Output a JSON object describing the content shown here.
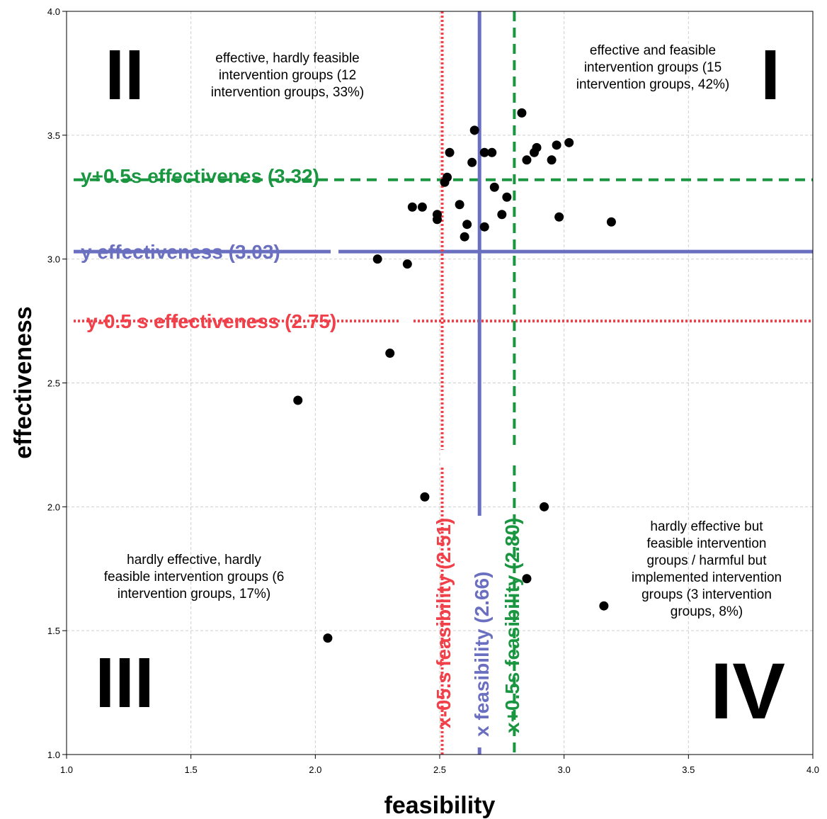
{
  "chart_data": {
    "type": "scatter",
    "xlabel": "feasibility",
    "ylabel": "effectiveness",
    "xlim": [
      1.0,
      4.0
    ],
    "ylim": [
      1.0,
      4.0
    ],
    "xticks": [
      "1.0",
      "1.5",
      "2.0",
      "2.5",
      "3.0",
      "3.5",
      "4.0"
    ],
    "yticks": [
      "1.0",
      "1.5",
      "2.0",
      "2.5",
      "3.0",
      "3.5",
      "4.0"
    ],
    "grid": true,
    "points": [
      {
        "x": 2.83,
        "y": 3.59
      },
      {
        "x": 2.64,
        "y": 3.52
      },
      {
        "x": 3.02,
        "y": 3.47
      },
      {
        "x": 2.89,
        "y": 3.45
      },
      {
        "x": 2.97,
        "y": 3.46
      },
      {
        "x": 2.88,
        "y": 3.43
      },
      {
        "x": 2.54,
        "y": 3.43
      },
      {
        "x": 2.68,
        "y": 3.43
      },
      {
        "x": 2.71,
        "y": 3.43
      },
      {
        "x": 2.85,
        "y": 3.4
      },
      {
        "x": 2.95,
        "y": 3.4
      },
      {
        "x": 2.63,
        "y": 3.39
      },
      {
        "x": 2.53,
        "y": 3.33
      },
      {
        "x": 2.52,
        "y": 3.31
      },
      {
        "x": 2.72,
        "y": 3.29
      },
      {
        "x": 2.77,
        "y": 3.25
      },
      {
        "x": 2.58,
        "y": 3.22
      },
      {
        "x": 2.39,
        "y": 3.21
      },
      {
        "x": 2.43,
        "y": 3.21
      },
      {
        "x": 2.49,
        "y": 3.18
      },
      {
        "x": 2.49,
        "y": 3.16
      },
      {
        "x": 2.75,
        "y": 3.18
      },
      {
        "x": 2.98,
        "y": 3.17
      },
      {
        "x": 3.19,
        "y": 3.15
      },
      {
        "x": 2.61,
        "y": 3.14
      },
      {
        "x": 2.68,
        "y": 3.13
      },
      {
        "x": 2.6,
        "y": 3.09
      },
      {
        "x": 2.25,
        "y": 3.0
      },
      {
        "x": 2.37,
        "y": 2.98
      },
      {
        "x": 2.3,
        "y": 2.62
      },
      {
        "x": 1.93,
        "y": 2.43
      },
      {
        "x": 2.44,
        "y": 2.04
      },
      {
        "x": 2.92,
        "y": 2.0
      },
      {
        "x": 2.85,
        "y": 1.71
      },
      {
        "x": 3.16,
        "y": 1.6
      },
      {
        "x": 2.05,
        "y": 1.47
      }
    ],
    "reference_lines": [
      {
        "axis": "y",
        "value": 3.32,
        "label": "y+0.5s effectivenes (3.32)",
        "color": "#1a9641",
        "style": "dashed"
      },
      {
        "axis": "y",
        "value": 3.03,
        "label": "y effectiveness (3.03)",
        "color": "#6a6fc0",
        "style": "solid"
      },
      {
        "axis": "y",
        "value": 2.75,
        "label": "y-0.5 s effectiveness (2.75)",
        "color": "#f0414b",
        "style": "dotted"
      },
      {
        "axis": "x",
        "value": 2.51,
        "label": "x-05.s feasibility (2.51)",
        "color": "#f0414b",
        "style": "dotted"
      },
      {
        "axis": "x",
        "value": 2.66,
        "label": "x feasibility (2.66)",
        "color": "#6a6fc0",
        "style": "solid"
      },
      {
        "axis": "x",
        "value": 2.8,
        "label": "x+0.5s feasibility (2.80)",
        "color": "#1a9641",
        "style": "dashed"
      }
    ],
    "quadrants": [
      {
        "numeral": "I",
        "text": [
          "effective and feasible",
          "intervention groups (15",
          "intervention groups, 42%)"
        ]
      },
      {
        "numeral": "II",
        "text": [
          "effective, hardly feasible",
          "intervention groups (12",
          "intervention groups, 33%)"
        ]
      },
      {
        "numeral": "III",
        "text": [
          "hardly effective, hardly",
          "feasible intervention groups (6",
          "intervention groups, 17%)"
        ]
      },
      {
        "numeral": "IV",
        "text": [
          "hardly effective but",
          "feasible intervention",
          "groups / harmful but",
          "implemented intervention",
          "groups (3 intervention",
          "groups, 8%)"
        ]
      }
    ]
  }
}
